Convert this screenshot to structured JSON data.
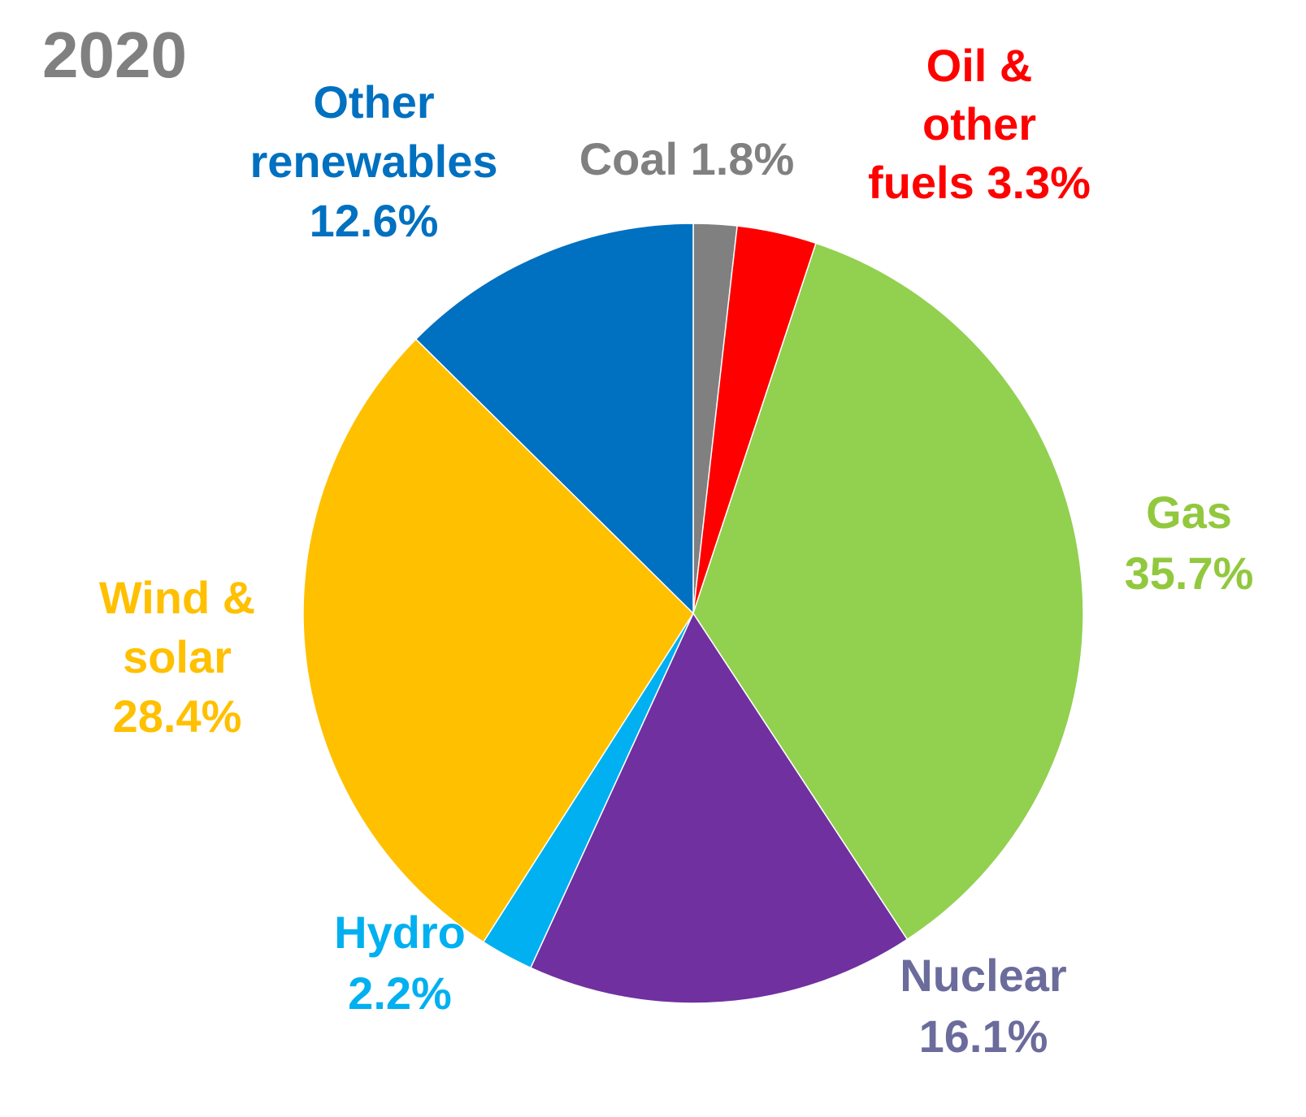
{
  "chart_data": {
    "type": "pie",
    "title": "2020",
    "title_color": "#808080",
    "start": "top",
    "direction": "clockwise",
    "slices": [
      {
        "label": [
          "Coal"
        ],
        "value_text": "1.8%",
        "value": 1.8,
        "color": "#808080",
        "label_color": "#808080",
        "label_inline": true
      },
      {
        "label": [
          "Oil &",
          "other",
          "fuels"
        ],
        "value_text": "3.3%",
        "value": 3.3,
        "color": "#ff0000",
        "label_color": "#ff0000",
        "label_inline": true
      },
      {
        "label": [
          "Gas"
        ],
        "value_text": "35.7%",
        "value": 35.7,
        "color": "#92d050",
        "label_color": "#92c83e",
        "label_inline": false
      },
      {
        "label": [
          "Nuclear"
        ],
        "value_text": "16.1%",
        "value": 16.1,
        "color": "#7030a0",
        "label_color": "#6b6b9c",
        "label_inline": false
      },
      {
        "label": [
          "Hydro"
        ],
        "value_text": "2.2%",
        "value": 2.2,
        "color": "#00b0f0",
        "label_color": "#00b0f0",
        "label_inline": false
      },
      {
        "label": [
          "Wind &",
          "solar"
        ],
        "value_text": "28.4%",
        "value": 28.4,
        "color": "#ffc000",
        "label_color": "#ffc000",
        "label_inline": false
      },
      {
        "label": [
          "Other",
          "renewables"
        ],
        "value_text": "12.6%",
        "value": 12.6,
        "color": "#0070c0",
        "label_color": "#0070c0",
        "label_inline": false
      }
    ]
  }
}
